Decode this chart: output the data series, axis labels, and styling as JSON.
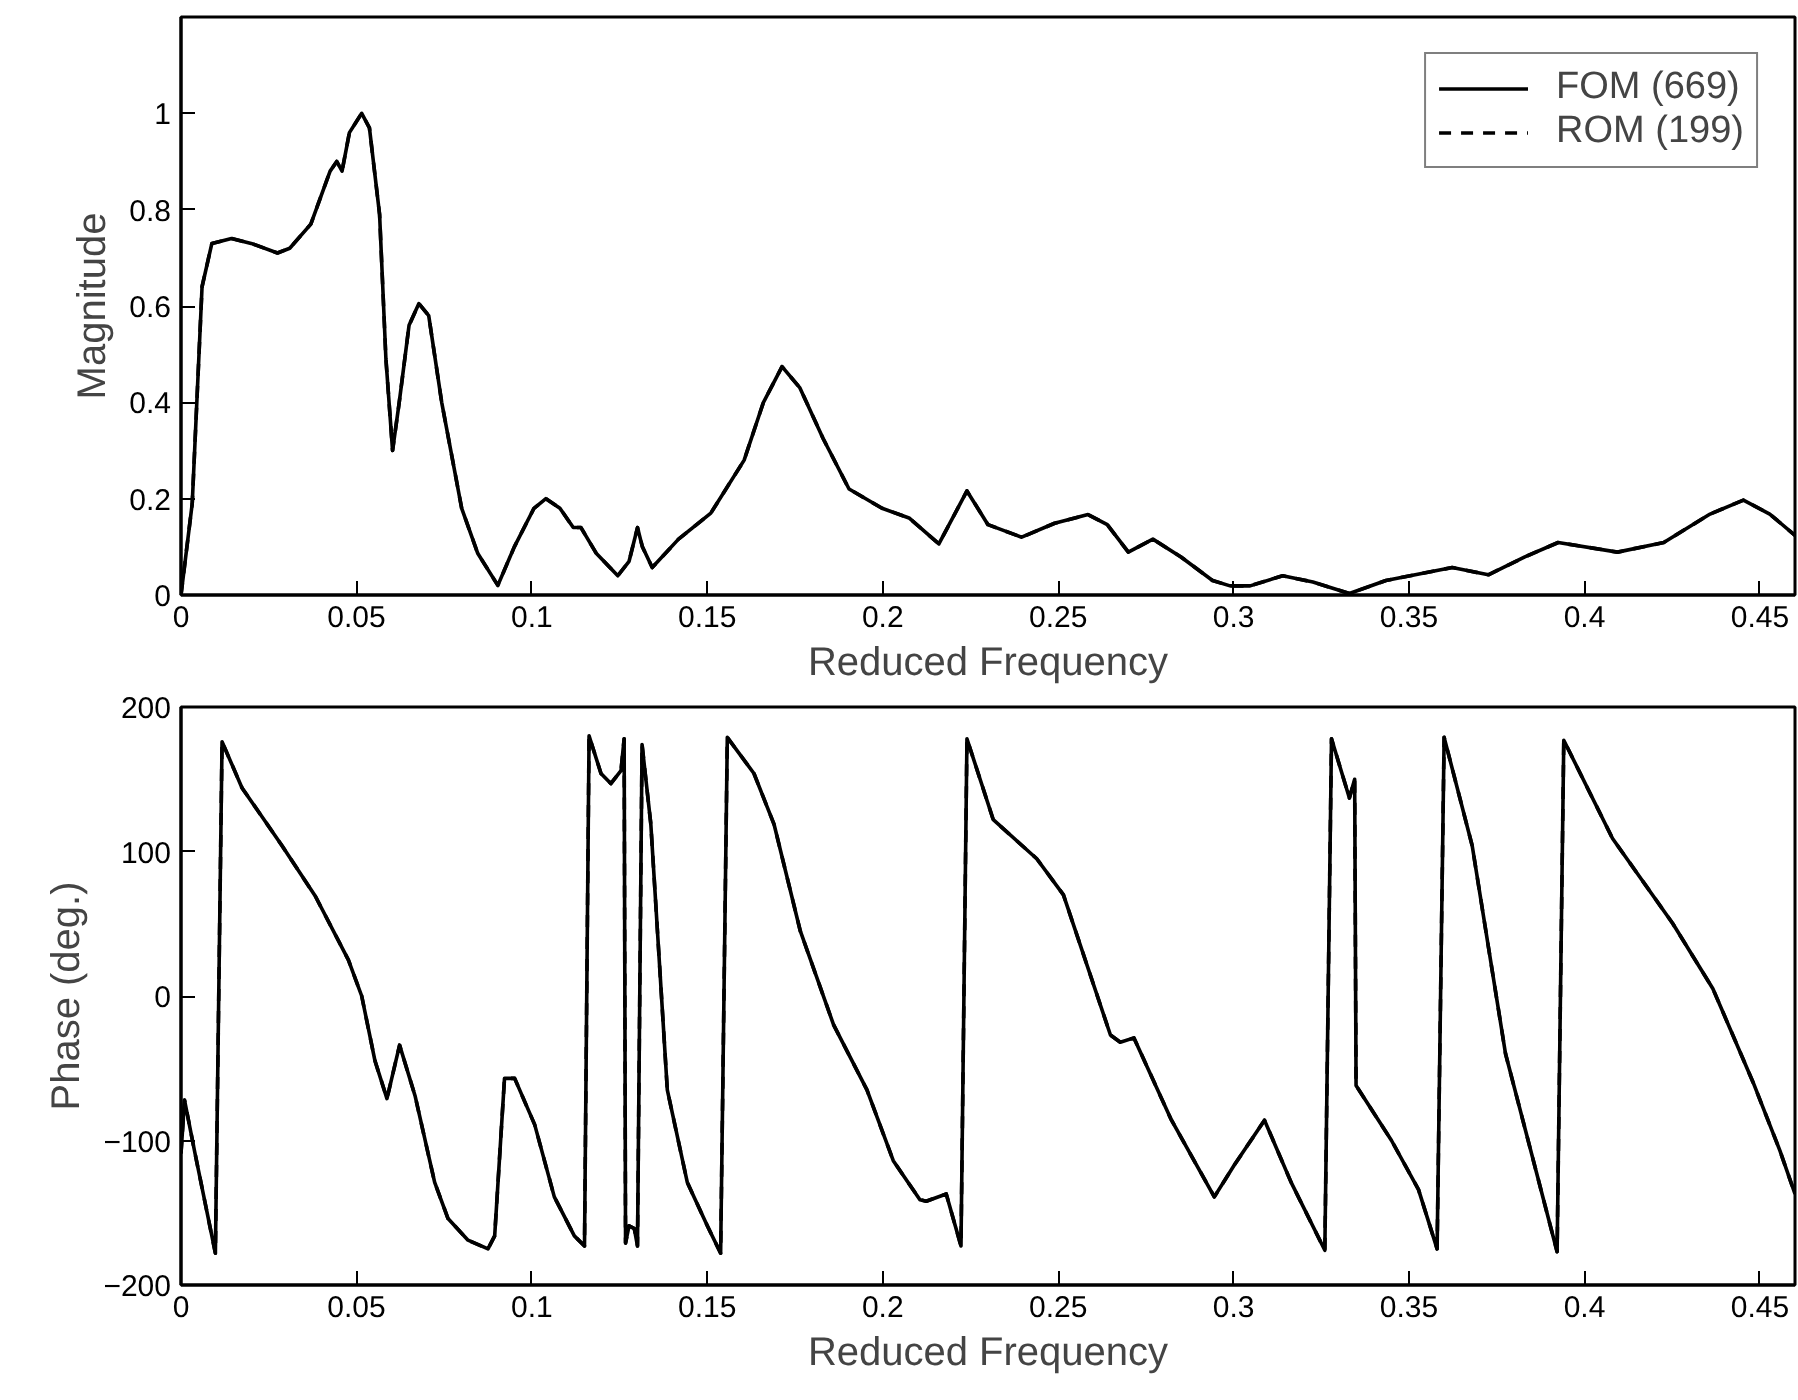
{
  "chart_data": [
    {
      "type": "line",
      "xlabel": "Reduced Frequency",
      "ylabel": "Magnitude",
      "xlim": [
        0,
        0.46
      ],
      "ylim": [
        0,
        1.2
      ],
      "xticks": [
        0,
        0.05,
        0.1,
        0.15,
        0.2,
        0.25,
        0.3,
        0.35,
        0.4,
        0.45
      ],
      "yticks": [
        0,
        0.2,
        0.4,
        0.6,
        0.8,
        1
      ],
      "grid": false,
      "legend": "top right",
      "x": [
        0,
        0.0032,
        0.006,
        0.0088,
        0.0144,
        0.02,
        0.0275,
        0.031,
        0.037,
        0.0425,
        0.0444,
        0.0459,
        0.048,
        0.0515,
        0.0537,
        0.0566,
        0.0584,
        0.0603,
        0.0622,
        0.065,
        0.0678,
        0.0706,
        0.0743,
        0.08,
        0.0846,
        0.0903,
        0.095,
        0.1006,
        0.104,
        0.108,
        0.1118,
        0.114,
        0.1184,
        0.1245,
        0.1277,
        0.1301,
        0.1315,
        0.1343,
        0.1418,
        0.151,
        0.1605,
        0.166,
        0.1713,
        0.1764,
        0.183,
        0.1904,
        0.1998,
        0.2075,
        0.216,
        0.224,
        0.23,
        0.2396,
        0.249,
        0.2585,
        0.264,
        0.27,
        0.277,
        0.285,
        0.294,
        0.299,
        0.3047,
        0.314,
        0.3226,
        0.333,
        0.3434,
        0.3623,
        0.3726,
        0.383,
        0.3925,
        0.4094,
        0.4226,
        0.4358,
        0.4453,
        0.4528,
        0.46
      ],
      "series": [
        {
          "name": "FOM (669)",
          "color": "#000000",
          "line_style": "solid",
          "values": [
            0,
            0.19,
            0.64,
            0.73,
            0.74,
            0.73,
            0.71,
            0.72,
            0.77,
            0.88,
            0.9,
            0.88,
            0.96,
            1.0,
            0.97,
            0.79,
            0.49,
            0.3,
            0.4,
            0.56,
            0.605,
            0.58,
            0.4,
            0.18,
            0.086,
            0.02,
            0.1,
            0.18,
            0.2,
            0.18,
            0.14,
            0.14,
            0.086,
            0.04,
            0.07,
            0.14,
            0.1,
            0.057,
            0.116,
            0.17,
            0.28,
            0.4,
            0.474,
            0.43,
            0.325,
            0.22,
            0.18,
            0.16,
            0.106,
            0.216,
            0.146,
            0.12,
            0.149,
            0.167,
            0.146,
            0.089,
            0.116,
            0.079,
            0.03,
            0.019,
            0.019,
            0.04,
            0.027,
            0.003,
            0.03,
            0.057,
            0.042,
            0.079,
            0.109,
            0.089,
            0.109,
            0.168,
            0.197,
            0.168,
            0.124
          ]
        },
        {
          "name": "ROM (199)",
          "color": "#000000",
          "line_style": "dashed",
          "values": [
            0,
            0.19,
            0.64,
            0.73,
            0.74,
            0.73,
            0.71,
            0.72,
            0.77,
            0.88,
            0.9,
            0.88,
            0.96,
            1.0,
            0.97,
            0.79,
            0.49,
            0.3,
            0.4,
            0.56,
            0.605,
            0.58,
            0.4,
            0.18,
            0.086,
            0.02,
            0.1,
            0.18,
            0.2,
            0.18,
            0.14,
            0.14,
            0.086,
            0.04,
            0.07,
            0.14,
            0.1,
            0.057,
            0.116,
            0.17,
            0.28,
            0.4,
            0.474,
            0.43,
            0.325,
            0.22,
            0.18,
            0.16,
            0.106,
            0.216,
            0.146,
            0.12,
            0.149,
            0.167,
            0.146,
            0.089,
            0.116,
            0.079,
            0.03,
            0.019,
            0.019,
            0.04,
            0.027,
            0.003,
            0.03,
            0.057,
            0.042,
            0.079,
            0.109,
            0.089,
            0.109,
            0.168,
            0.197,
            0.168,
            0.124
          ]
        }
      ]
    },
    {
      "type": "line",
      "xlabel": "Reduced Frequency",
      "ylabel": "Phase (deg.)",
      "xlim": [
        0,
        0.46
      ],
      "ylim": [
        -200,
        200
      ],
      "xticks": [
        0,
        0.05,
        0.1,
        0.15,
        0.2,
        0.25,
        0.3,
        0.35,
        0.4,
        0.45
      ],
      "yticks": [
        -200,
        -100,
        0,
        100,
        200
      ],
      "grid": false,
      "x": [
        0,
        0.001,
        0.004,
        0.0098,
        0.0117,
        0.0174,
        0.0288,
        0.0383,
        0.0477,
        0.0515,
        0.0553,
        0.0587,
        0.0623,
        0.0667,
        0.0723,
        0.0761,
        0.0818,
        0.0875,
        0.0894,
        0.0922,
        0.0951,
        0.1008,
        0.1064,
        0.1121,
        0.115,
        0.1163,
        0.1197,
        0.1225,
        0.1254,
        0.1263,
        0.1267,
        0.1277,
        0.1292,
        0.1301,
        0.1314,
        0.1339,
        0.1386,
        0.1443,
        0.15,
        0.1538,
        0.1557,
        0.1633,
        0.169,
        0.1765,
        0.186,
        0.1955,
        0.203,
        0.2106,
        0.2124,
        0.2181,
        0.2223,
        0.224,
        0.2315,
        0.2439,
        0.2515,
        0.2649,
        0.2677,
        0.2716,
        0.2821,
        0.2945,
        0.3002,
        0.3088,
        0.3164,
        0.326,
        0.3279,
        0.333,
        0.3345,
        0.3349,
        0.345,
        0.3527,
        0.358,
        0.36,
        0.368,
        0.3775,
        0.3922,
        0.3941,
        0.408,
        0.4252,
        0.4366,
        0.4481,
        0.4557,
        0.46
      ],
      "series": [
        {
          "color": "#000000",
          "line_style": "solid",
          "values": [
            -109,
            -72,
            -109,
            -178,
            176,
            144,
            104,
            69,
            25,
            0,
            -45,
            -71,
            -34,
            -69,
            -129,
            -154,
            -169,
            -175,
            -166,
            -57,
            -57,
            -89,
            -139,
            -166,
            -173,
            180,
            154,
            147,
            156,
            178,
            -171,
            -159,
            -161,
            -173,
            174,
            119,
            -65,
            -129,
            -159,
            -178,
            179,
            154,
            119,
            45,
            -20,
            -65,
            -114,
            -141,
            -142,
            -137,
            -173,
            178,
            122,
            95,
            70,
            -27,
            -32,
            -29,
            -85,
            -139,
            -117,
            -86,
            -129,
            -176,
            178,
            137,
            150,
            -62,
            -100,
            -134,
            -175,
            179,
            104,
            -40,
            -177,
            177,
            109,
            50,
            5,
            -60,
            -107,
            -137
          ]
        },
        {
          "color": "#000000",
          "line_style": "dashed",
          "values": [
            -109,
            -72,
            -109,
            -178,
            176,
            144,
            104,
            69,
            25,
            0,
            -45,
            -71,
            -34,
            -69,
            -129,
            -154,
            -169,
            -175,
            -166,
            -57,
            -57,
            -89,
            -139,
            -166,
            -173,
            180,
            154,
            147,
            156,
            178,
            -171,
            -159,
            -161,
            -173,
            174,
            119,
            -65,
            -129,
            -159,
            -178,
            179,
            154,
            119,
            45,
            -20,
            -65,
            -114,
            -141,
            -142,
            -137,
            -173,
            178,
            122,
            95,
            70,
            -27,
            -32,
            -29,
            -85,
            -139,
            -117,
            -86,
            -129,
            -176,
            178,
            137,
            150,
            -62,
            -100,
            -134,
            -175,
            179,
            104,
            -40,
            -177,
            177,
            109,
            50,
            5,
            -60,
            -107,
            -137
          ]
        }
      ]
    }
  ]
}
